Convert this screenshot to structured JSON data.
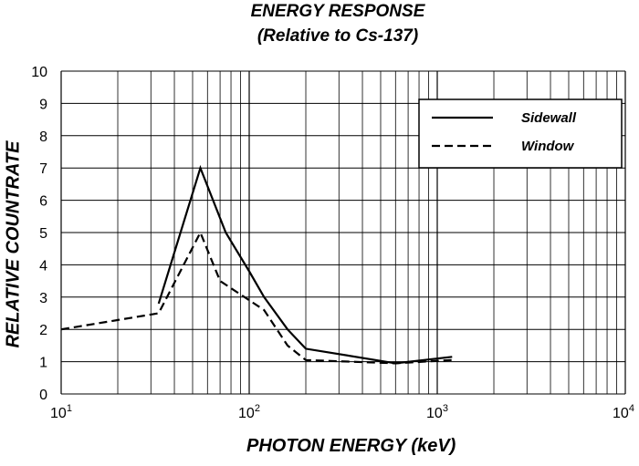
{
  "chart_data": {
    "type": "line",
    "title": "ENERGY RESPONSE",
    "subtitle": "(Relative to Cs-137)",
    "xlabel": "PHOTON ENERGY (keV)",
    "ylabel": "RELATIVE COUNTRATE",
    "x_scale": "log",
    "xlim": [
      10,
      10000
    ],
    "ylim": [
      0,
      10
    ],
    "grid": true,
    "legend_position": "top-right",
    "x_tick_labels": [
      {
        "base": "10",
        "exp": "1"
      },
      {
        "base": "10",
        "exp": "2"
      },
      {
        "base": "10",
        "exp": "3"
      },
      {
        "base": "10",
        "exp": "4"
      }
    ],
    "y_ticks": [
      0,
      1,
      2,
      3,
      4,
      5,
      6,
      7,
      8,
      9,
      10
    ],
    "series": [
      {
        "name": "Sidewall",
        "style": "solid",
        "x": [
          33,
          55,
          75,
          100,
          120,
          160,
          200,
          600,
          1200
        ],
        "y": [
          2.8,
          7.0,
          5.0,
          3.8,
          3.0,
          2.0,
          1.4,
          0.95,
          1.15
        ]
      },
      {
        "name": "Window",
        "style": "dashed",
        "x": [
          10,
          33,
          55,
          70,
          120,
          160,
          200,
          600,
          1200
        ],
        "y": [
          2.0,
          2.5,
          5.0,
          3.5,
          2.6,
          1.5,
          1.05,
          0.95,
          1.05
        ]
      }
    ]
  }
}
